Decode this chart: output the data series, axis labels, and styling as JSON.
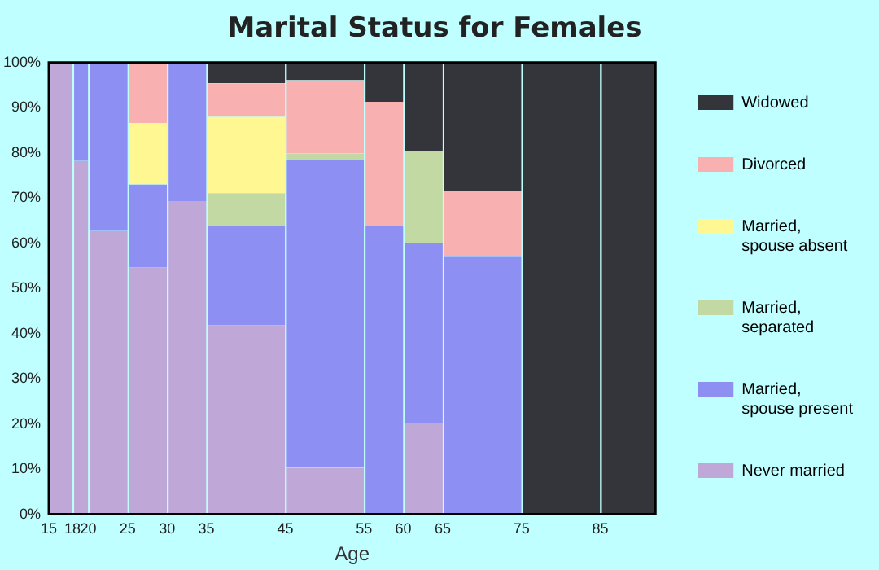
{
  "chart_data": {
    "type": "bar",
    "stacked": true,
    "title": "Marital Status for Females",
    "xlabel": "Age",
    "x": [
      16.5,
      19,
      22.5,
      27.5,
      32.5,
      40,
      50,
      57.5,
      62.5,
      70,
      80,
      88.5
    ],
    "xlim": [
      15,
      92
    ],
    "xticks": [
      15,
      18,
      20,
      25,
      30,
      35,
      45,
      55,
      60,
      65,
      75,
      85
    ],
    "ylim": [
      0,
      100
    ],
    "yticks": [
      {
        "value": 0,
        "label": "0%"
      },
      {
        "value": 10,
        "label": "10%"
      },
      {
        "value": 20,
        "label": "20%"
      },
      {
        "value": 30,
        "label": "30%"
      },
      {
        "value": 40,
        "label": "40%"
      },
      {
        "value": 50,
        "label": "50%"
      },
      {
        "value": 60,
        "label": "60%"
      },
      {
        "value": 70,
        "label": "70%"
      },
      {
        "value": 80,
        "label": "80%"
      },
      {
        "value": 90,
        "label": "90%"
      },
      {
        "value": 100,
        "label": "100%"
      }
    ],
    "grid": false,
    "legend": "right",
    "series": [
      {
        "name": "Never married",
        "color": "#bfa8d8",
        "values": [
          100,
          78.2,
          62.7,
          54.6,
          69.3,
          41.8,
          10.3,
          0,
          20.2,
          0,
          0,
          0
        ]
      },
      {
        "name": "Married, spouse present",
        "color": "#8e8ff2",
        "values": [
          0,
          21.8,
          37.3,
          18.4,
          30.7,
          22.0,
          68.2,
          63.8,
          39.9,
          57.2,
          0,
          0
        ]
      },
      {
        "name": "Married, separated",
        "color": "#c3d9a4",
        "values": [
          0,
          0,
          0,
          0,
          0,
          7.3,
          1.4,
          0,
          20.2,
          0,
          0,
          0
        ]
      },
      {
        "name": "Married, spouse absent",
        "color": "#fff892",
        "values": [
          0,
          0,
          0,
          13.6,
          0,
          16.9,
          0,
          0,
          0,
          0,
          0,
          0
        ]
      },
      {
        "name": "Divorced",
        "color": "#f8b1b0",
        "values": [
          0,
          0,
          0,
          13.4,
          0,
          7.4,
          16.2,
          27.5,
          0,
          14.3,
          0,
          0
        ]
      },
      {
        "name": "Widowed",
        "color": "#34353b",
        "values": [
          0,
          0,
          0,
          0,
          0,
          4.6,
          3.9,
          8.7,
          19.7,
          28.5,
          100,
          100
        ]
      }
    ]
  }
}
